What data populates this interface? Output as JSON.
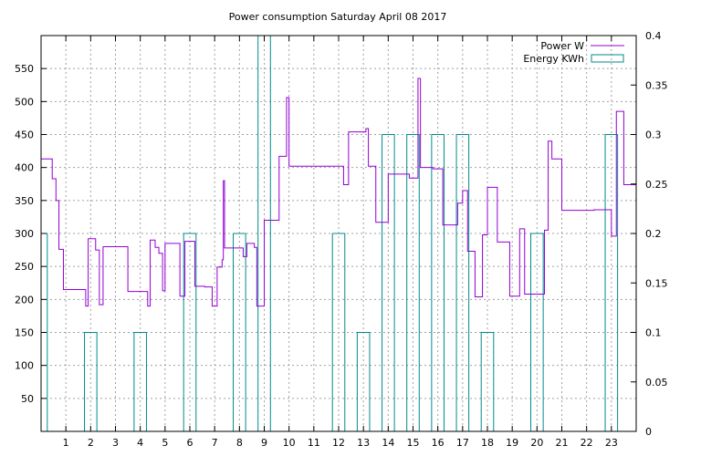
{
  "chart_data": {
    "type": "line",
    "title": "Power consumption Saturday April 08 2017",
    "xlim": [
      0,
      24
    ],
    "ylim": [
      0,
      600
    ],
    "y2lim": [
      0,
      0.4
    ],
    "x_ticks": [
      1,
      2,
      3,
      4,
      5,
      6,
      7,
      8,
      9,
      10,
      11,
      12,
      13,
      14,
      15,
      16,
      17,
      18,
      19,
      20,
      21,
      22,
      23
    ],
    "y_ticks": [
      50,
      100,
      150,
      200,
      250,
      300,
      350,
      400,
      450,
      500,
      550
    ],
    "y2_ticks": [
      "0",
      "0.05",
      "0.1",
      "0.15",
      "0.2",
      "0.25",
      "0.3",
      "0.35",
      "0.4"
    ],
    "grid": true,
    "legend_position": "top-right",
    "series": [
      {
        "name": "Power W",
        "color": "#9400d3",
        "style": "step-line",
        "axis": "y",
        "x": [
          0,
          0.45,
          0.6,
          0.72,
          0.9,
          1.8,
          1.9,
          2.2,
          2.35,
          2.5,
          3.0,
          3.5,
          4.1,
          4.3,
          4.4,
          4.6,
          4.75,
          4.9,
          5.0,
          5.5,
          5.6,
          5.8,
          6.2,
          6.6,
          6.9,
          7.1,
          7.3,
          7.35,
          7.4,
          8.0,
          8.15,
          8.3,
          8.6,
          8.7,
          9.0,
          9.2,
          9.6,
          9.9,
          10.0,
          11.4,
          12.2,
          12.4,
          12.8,
          13.1,
          13.2,
          13.5,
          13.7,
          14.0,
          14.6,
          14.85,
          15.0,
          15.2,
          15.3,
          15.8,
          16.0,
          16.2,
          16.8,
          16.9,
          17.0,
          17.2,
          17.5,
          17.7,
          17.8,
          18.0,
          18.4,
          18.9,
          19.3,
          19.5,
          20.1,
          20.2,
          20.3,
          20.45,
          20.6,
          21.0,
          21.5,
          22.0,
          22.3,
          22.8,
          23.0,
          23.2,
          23.5,
          23.9
        ],
        "values": [
          413,
          383,
          350,
          276,
          215,
          190,
          292,
          275,
          192,
          280,
          280,
          212,
          212,
          190,
          290,
          279,
          270,
          213,
          285,
          285,
          205,
          288,
          220,
          219,
          190,
          249,
          260,
          380,
          278,
          278,
          265,
          285,
          279,
          190,
          320,
          320,
          417,
          506,
          402,
          402,
          374,
          454,
          454,
          459,
          402,
          317,
          317,
          390,
          390,
          384,
          384,
          535,
          400,
          398,
          398,
          313,
          346,
          346,
          365,
          273,
          204,
          204,
          298,
          370,
          287,
          205,
          307,
          208,
          208,
          208,
          305,
          440,
          413,
          335,
          335,
          335,
          336,
          336,
          296,
          485,
          374,
          374
        ]
      },
      {
        "name": "Energy KWh",
        "color": "#008b8b",
        "style": "boxes",
        "axis": "y2",
        "x": [
          0,
          1,
          2,
          3,
          4,
          5,
          6,
          7,
          8,
          9,
          10,
          11,
          12,
          13,
          14,
          15,
          16,
          17,
          18,
          19,
          20,
          21,
          22,
          23
        ],
        "values": [
          0.2,
          0,
          0.1,
          0,
          0.1,
          0,
          0.2,
          0,
          0.2,
          0.4,
          0,
          0,
          0.2,
          0.1,
          0.3,
          0.3,
          0.3,
          0.3,
          0.1,
          0,
          0.2,
          0,
          0,
          0.3
        ]
      }
    ]
  }
}
